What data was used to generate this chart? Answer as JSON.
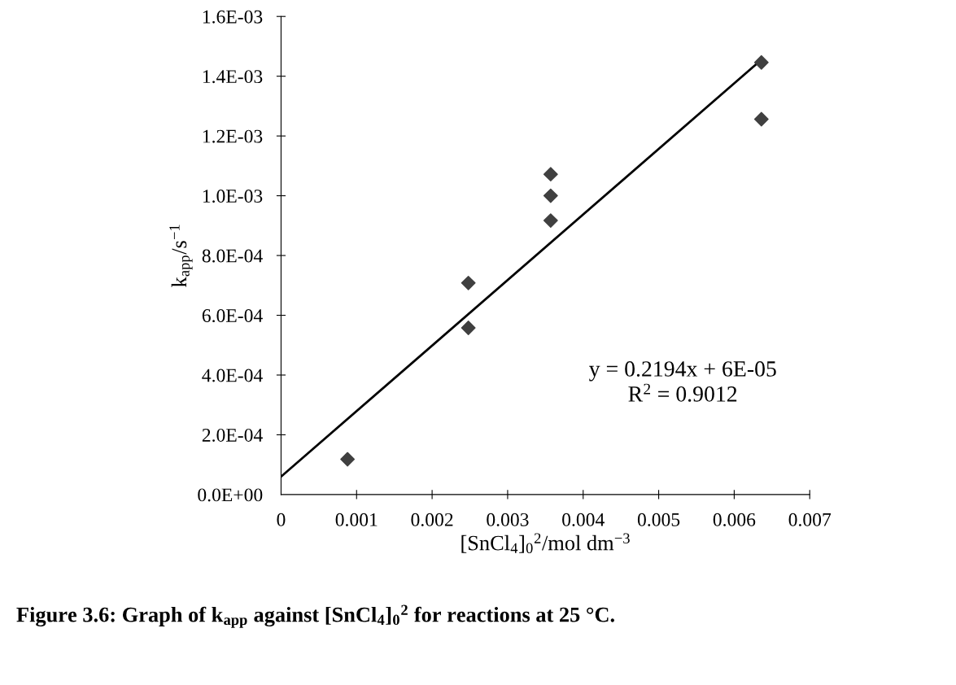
{
  "chart_data": {
    "type": "scatter",
    "xlabel": "[SnCl$_{4}$]$_{0}$$^{2}$/mol dm$^{−3}$",
    "ylabel": "k$_{app}$/s$^{−1}$",
    "annotations": [
      "y = 0.2194x + 6E-05\nR$^{2}$ = 0.9012",
      "Figure 3.6: Graph of k$_{app}$ against [SnCl$_{4}$]$_{0}$$^{2}$ for reactions at 25 °C."
    ],
    "series": [
      {
        "color": "#404040",
        "marker": "diamond",
        "x": [
          0.00088,
          0.00248,
          0.00248,
          0.00357,
          0.00357,
          0.00357,
          0.00636,
          0.00636
        ],
        "values": [
          0.000118,
          0.000708,
          0.000558,
          0.001072,
          0.001,
          0.000917,
          0.001446,
          0.001256
        ]
      },
      {
        "type": "line",
        "color": "#000000",
        "marker": "none",
        "line_style": "solid",
        "x": [
          0,
          0.00636
        ],
        "values": [
          6e-05,
          0.001455
        ]
      }
    ],
    "xlim": [
      0,
      0.007
    ],
    "xticks": [
      0,
      0.001,
      0.002,
      0.003,
      0.004,
      0.005,
      0.006,
      0.007
    ],
    "ylim": [
      0,
      0.0016
    ],
    "yticks": [
      {
        "value": 0,
        "label": "0.0E+00"
      },
      {
        "value": 0.0002,
        "label": "2.0E-04"
      },
      {
        "value": 0.0004,
        "label": "4.0E-04"
      },
      {
        "value": 0.0006,
        "label": "6.0E-04"
      },
      {
        "value": 0.0008,
        "label": "8.0E-04"
      },
      {
        "value": 0.001,
        "label": "1.0E-03"
      },
      {
        "value": 0.0012,
        "label": "1.2E-03"
      },
      {
        "value": 0.0014,
        "label": "1.4E-03"
      },
      {
        "value": 0.0016,
        "label": "1.6E-03"
      }
    ],
    "grid": false,
    "legend": false
  }
}
